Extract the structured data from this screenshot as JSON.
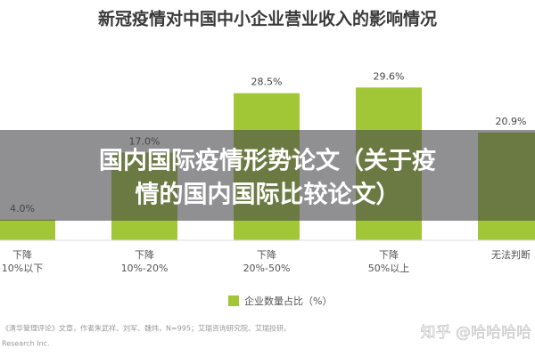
{
  "chart_data": {
    "type": "bar",
    "title": "新冠疫情对中国中小企业营业收入的影响情况",
    "categories": [
      "下降\n10%以下",
      "下降\n10%-20%",
      "下降\n20%-50%",
      "下降\n50%以上",
      "无法判断"
    ],
    "series": [
      {
        "name": "企业数量占比（%）",
        "color": "#a2c736",
        "values": [
          4.0,
          17.0,
          28.5,
          29.6,
          20.9
        ],
        "value_labels": [
          "4.0%",
          "17.0%",
          "28.5%",
          "29.6%",
          "20.9%"
        ]
      }
    ],
    "legend": "bottom",
    "source": [
      "《清华管理评论》文章，作者朱武祥、刘军、魏炜，N=995；艾瑞咨询研究院、艾瑞投研。",
      "Research Inc."
    ]
  },
  "overlay": {
    "lines": [
      "国内国际疫情形势论文（关于疫",
      "情的国内国际比较论文）"
    ]
  },
  "watermark": "知乎 @哈哈哈哈"
}
